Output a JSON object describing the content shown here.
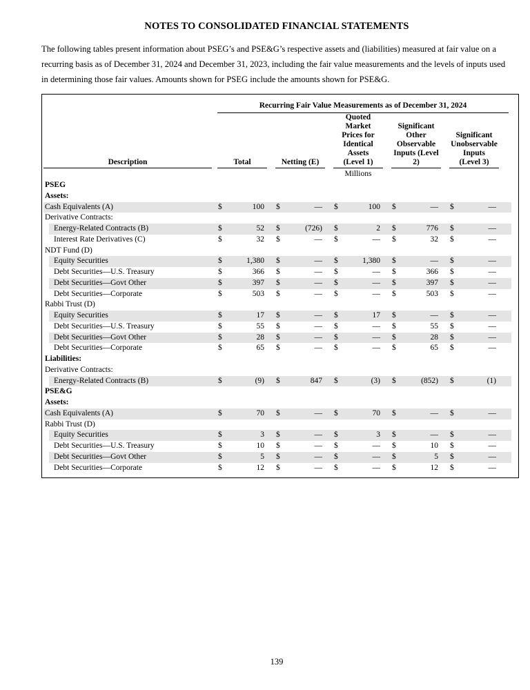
{
  "page": {
    "title": "NOTES TO CONSOLIDATED FINANCIAL STATEMENTS",
    "intro": "The following tables present information about PSEG’s and PSE&G’s respective assets and (liabilities) measured at fair value on a recurring basis as of December 31, 2024 and December 31, 2023, including the fair value measurements and the levels of inputs used in determining those fair values. Amounts shown for PSEG include the amounts shown for PSE&G.",
    "page_number": "139"
  },
  "colors": {
    "row_shade": "#e4e4e4",
    "border": "#000000"
  },
  "table": {
    "banner": "Recurring Fair Value Measurements as of December 31, 2024",
    "unit_label": "Millions",
    "currency_symbol": "$",
    "columns": {
      "desc": "Description",
      "groups": [
        "Total",
        "Netting (E)",
        "Quoted\nMarket\nPrices for\nIdentical\nAssets\n(Level 1)",
        "Significant\nOther\nObservable\nInputs (Level\n2)",
        "Significant\nUnobservable\nInputs\n(Level 3)"
      ]
    },
    "rows": [
      {
        "label": "PSEG",
        "bold": true,
        "indent": false,
        "shaded": false,
        "values": null
      },
      {
        "label": "Assets:",
        "bold": true,
        "indent": false,
        "shaded": false,
        "values": null
      },
      {
        "label": "Cash Equivalents (A)",
        "bold": false,
        "indent": false,
        "shaded": true,
        "values": [
          "100",
          "—",
          "100",
          "—",
          "—"
        ]
      },
      {
        "label": "Derivative Contracts:",
        "bold": false,
        "indent": false,
        "shaded": false,
        "values": null
      },
      {
        "label": "Energy-Related Contracts (B)",
        "bold": false,
        "indent": true,
        "shaded": true,
        "values": [
          "52",
          "(726)",
          "2",
          "776",
          "—"
        ]
      },
      {
        "label": "Interest Rate Derivatives (C)",
        "bold": false,
        "indent": true,
        "shaded": false,
        "values": [
          "32",
          "—",
          "—",
          "32",
          "—"
        ]
      },
      {
        "label": "NDT Fund (D)",
        "bold": false,
        "indent": false,
        "shaded": false,
        "values": null
      },
      {
        "label": "Equity Securities",
        "bold": false,
        "indent": true,
        "shaded": true,
        "values": [
          "1,380",
          "—",
          "1,380",
          "—",
          "—"
        ]
      },
      {
        "label": "Debt Securities—U.S. Treasury",
        "bold": false,
        "indent": true,
        "shaded": false,
        "values": [
          "366",
          "—",
          "—",
          "366",
          "—"
        ]
      },
      {
        "label": "Debt Securities—Govt Other",
        "bold": false,
        "indent": true,
        "shaded": true,
        "values": [
          "397",
          "—",
          "—",
          "397",
          "—"
        ]
      },
      {
        "label": "Debt Securities—Corporate",
        "bold": false,
        "indent": true,
        "shaded": false,
        "values": [
          "503",
          "—",
          "—",
          "503",
          "—"
        ]
      },
      {
        "label": "Rabbi Trust (D)",
        "bold": false,
        "indent": false,
        "shaded": false,
        "values": null
      },
      {
        "label": "Equity Securities",
        "bold": false,
        "indent": true,
        "shaded": true,
        "values": [
          "17",
          "—",
          "17",
          "—",
          "—"
        ]
      },
      {
        "label": "Debt Securities—U.S. Treasury",
        "bold": false,
        "indent": true,
        "shaded": false,
        "values": [
          "55",
          "—",
          "—",
          "55",
          "—"
        ]
      },
      {
        "label": "Debt Securities—Govt Other",
        "bold": false,
        "indent": true,
        "shaded": true,
        "values": [
          "28",
          "—",
          "—",
          "28",
          "—"
        ]
      },
      {
        "label": "Debt Securities—Corporate",
        "bold": false,
        "indent": true,
        "shaded": false,
        "values": [
          "65",
          "—",
          "—",
          "65",
          "—"
        ]
      },
      {
        "label": "Liabilities:",
        "bold": true,
        "indent": false,
        "shaded": false,
        "values": null
      },
      {
        "label": "Derivative Contracts:",
        "bold": false,
        "indent": false,
        "shaded": false,
        "values": null
      },
      {
        "label": "Energy-Related Contracts (B)",
        "bold": false,
        "indent": true,
        "shaded": true,
        "values": [
          "(9)",
          "847",
          "(3)",
          "(852)",
          "(1)"
        ]
      },
      {
        "label": "PSE&G",
        "bold": true,
        "indent": false,
        "shaded": false,
        "values": null
      },
      {
        "label": "Assets:",
        "bold": true,
        "indent": false,
        "shaded": false,
        "values": null
      },
      {
        "label": "Cash Equivalents (A)",
        "bold": false,
        "indent": false,
        "shaded": true,
        "values": [
          "70",
          "—",
          "70",
          "—",
          "—"
        ]
      },
      {
        "label": "Rabbi Trust (D)",
        "bold": false,
        "indent": false,
        "shaded": false,
        "values": null
      },
      {
        "label": "Equity Securities",
        "bold": false,
        "indent": true,
        "shaded": true,
        "values": [
          "3",
          "—",
          "3",
          "—",
          "—"
        ]
      },
      {
        "label": "Debt Securities—U.S. Treasury",
        "bold": false,
        "indent": true,
        "shaded": false,
        "values": [
          "10",
          "—",
          "—",
          "10",
          "—"
        ]
      },
      {
        "label": "Debt Securities—Govt Other",
        "bold": false,
        "indent": true,
        "shaded": true,
        "values": [
          "5",
          "—",
          "—",
          "5",
          "—"
        ]
      },
      {
        "label": "Debt Securities—Corporate",
        "bold": false,
        "indent": true,
        "shaded": false,
        "values": [
          "12",
          "—",
          "—",
          "12",
          "—"
        ]
      }
    ]
  }
}
